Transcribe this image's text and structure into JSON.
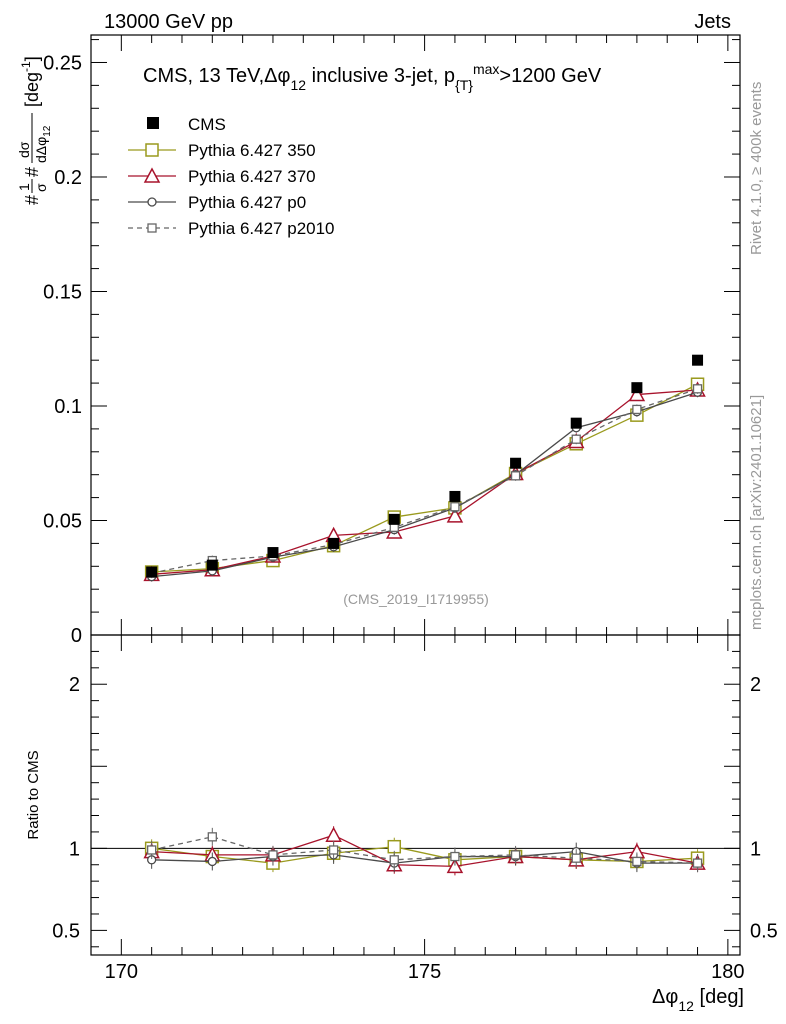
{
  "header": {
    "left": "13000 GeV pp",
    "right": "Jets"
  },
  "side_text": {
    "rivet": "Rivet 4.1.0, ≥ 400k events",
    "mcplots": "mcplots.cern.ch [arXiv:2401.10621]"
  },
  "watermark": "(CMS_2019_I1719955)",
  "chart_data": {
    "type": "scatter",
    "title": "CMS, 13 TeV,Δφ 12 inclusive 3-jet, p T max >1200 GeV",
    "title_parts": {
      "a": "CMS, 13 TeV,Δφ",
      "a_sub": "12",
      "b": " inclusive 3-jet, p",
      "b_sub": "{T}",
      "b_sup": "max",
      "c": ">1200 GeV"
    },
    "xlabel": "Δφ 12 [deg]",
    "xlabel_parts": {
      "main": "Δφ",
      "sub": "12",
      "unit": " [deg]"
    },
    "ylabel_top": "#1/σ #dσ/dΔφ 12 [deg-1]",
    "ylabel_parts": {
      "hash1": "#",
      "num1": "1",
      "den1": "σ",
      "hash2": "#",
      "num2": "dσ",
      "den2": "dΔφ",
      "den2_sub": "12",
      "unit": "[deg",
      "unit_sup": "-1",
      "unit_end": "]"
    },
    "ylabel_ratio": "Ratio to CMS",
    "xlim": [
      169.5,
      180.2
    ],
    "ylim_top": [
      0,
      0.262
    ],
    "ylim_ratio": [
      0.35,
      2.3
    ],
    "x_ticks": [
      170,
      175,
      180
    ],
    "x_tick_labels": [
      "170",
      "175",
      "180"
    ],
    "y_ticks_top": [
      0,
      0.05,
      0.1,
      0.15,
      0.2,
      0.25
    ],
    "y_tick_labels_top": [
      "0",
      "0.05",
      "0.1",
      "0.15",
      "0.2",
      "0.25"
    ],
    "y_ticks_ratio": [
      0.5,
      1,
      2
    ],
    "y_tick_labels_ratio": [
      "0.5",
      "1",
      "2"
    ],
    "x": [
      170.5,
      171.5,
      172.5,
      173.5,
      174.5,
      175.5,
      176.5,
      177.5,
      178.5,
      179.5
    ],
    "data": {
      "name": "CMS",
      "values": [
        0.0275,
        0.0305,
        0.036,
        0.04,
        0.0505,
        0.0605,
        0.075,
        0.0925,
        0.108,
        0.12
      ]
    },
    "series": [
      {
        "name": "Pythia 6.427 350",
        "color": "#9a9a1e",
        "marker": "square-open",
        "dashed": false,
        "values": [
          0.0275,
          0.029,
          0.0325,
          0.039,
          0.0515,
          0.0555,
          0.0705,
          0.0835,
          0.096,
          0.1095
        ],
        "ratio": [
          1.0,
          0.95,
          0.91,
          0.97,
          1.01,
          0.93,
          0.95,
          0.93,
          0.92,
          0.94
        ]
      },
      {
        "name": "Pythia 6.427 370",
        "color": "#a8132c",
        "marker": "triangle-open",
        "dashed": false,
        "values": [
          0.0265,
          0.0285,
          0.0345,
          0.0435,
          0.045,
          0.052,
          0.0705,
          0.0845,
          0.105,
          0.107
        ],
        "ratio": [
          0.98,
          0.96,
          0.96,
          1.08,
          0.9,
          0.89,
          0.95,
          0.93,
          0.98,
          0.91
        ]
      },
      {
        "name": "Pythia 6.427 p0",
        "color": "#4a4a4a",
        "marker": "circle-open",
        "dashed": false,
        "values": [
          0.0255,
          0.028,
          0.034,
          0.0385,
          0.046,
          0.0555,
          0.07,
          0.0905,
          0.0975,
          0.106
        ],
        "ratio": [
          0.93,
          0.92,
          0.95,
          0.96,
          0.91,
          0.95,
          0.95,
          0.98,
          0.91,
          0.91
        ]
      },
      {
        "name": "Pythia 6.427 p2010",
        "color": "#666666",
        "marker": "square-open-small",
        "dashed": true,
        "values": [
          0.027,
          0.0325,
          0.0345,
          0.0395,
          0.047,
          0.056,
          0.0695,
          0.0855,
          0.0985,
          0.1075
        ],
        "ratio": [
          0.99,
          1.07,
          0.96,
          0.99,
          0.93,
          0.95,
          0.96,
          0.94,
          0.92,
          0.91
        ]
      }
    ]
  }
}
